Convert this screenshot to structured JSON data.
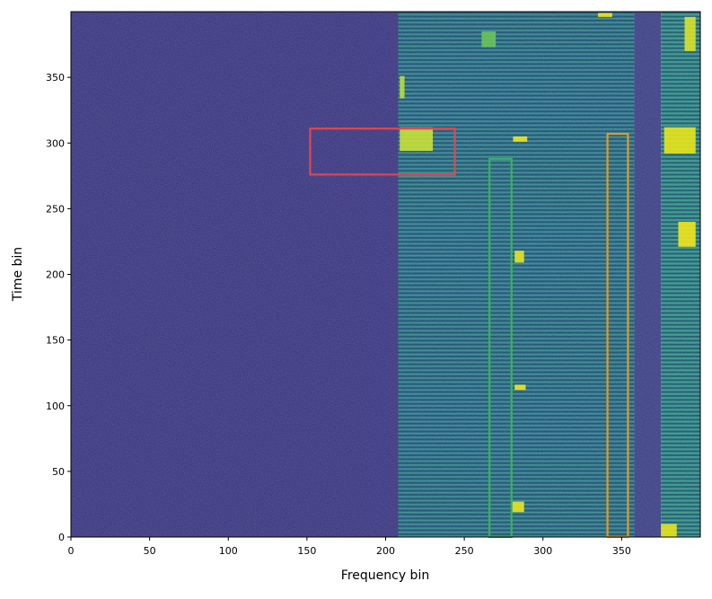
{
  "chart_data": {
    "type": "spectrogram",
    "xlabel": "Frequency bin",
    "ylabel": "Time bin",
    "xlim": [
      0,
      400
    ],
    "ylim": [
      0,
      400
    ],
    "xticks": [
      0,
      50,
      100,
      150,
      200,
      250,
      300,
      350
    ],
    "yticks": [
      0,
      50,
      100,
      150,
      200,
      250,
      300,
      350
    ],
    "bands": [
      {
        "x": [
          0,
          208
        ],
        "color": "#3a2f7c",
        "striped": false
      },
      {
        "x": [
          208,
          358
        ],
        "color": "#2a6f8e",
        "striped": true
      },
      {
        "x": [
          358,
          375
        ],
        "color": "#3b3a82",
        "striped": false
      },
      {
        "x": [
          375,
          400
        ],
        "color": "#2c8c86",
        "striped": true
      }
    ],
    "patches": [
      {
        "x": [
          209,
          230
        ],
        "y": [
          294,
          312
        ],
        "color": "#c8e03a"
      },
      {
        "x": [
          377,
          397
        ],
        "y": [
          292,
          312
        ],
        "color": "#e8e41c"
      },
      {
        "x": [
          386,
          397
        ],
        "y": [
          221,
          240
        ],
        "color": "#f2e51c"
      },
      {
        "x": [
          261,
          270
        ],
        "y": [
          373,
          385
        ],
        "color": "#6cc35a"
      },
      {
        "x": [
          280,
          288
        ],
        "y": [
          19,
          27
        ],
        "color": "#eee41e"
      },
      {
        "x": [
          282,
          288
        ],
        "y": [
          209,
          218
        ],
        "color": "#e8e41c"
      },
      {
        "x": [
          375,
          385
        ],
        "y": [
          0,
          10
        ],
        "color": "#e8e41c"
      },
      {
        "x": [
          390,
          397
        ],
        "y": [
          370,
          396
        ],
        "color": "#d8e22a"
      },
      {
        "x": [
          209,
          212
        ],
        "y": [
          334,
          351
        ],
        "color": "#b8de3a"
      },
      {
        "x": [
          281,
          290
        ],
        "y": [
          301,
          305
        ],
        "color": "#f2e51c"
      },
      {
        "x": [
          282,
          289
        ],
        "y": [
          112,
          116
        ],
        "color": "#f2e51c"
      },
      {
        "x": [
          335,
          344
        ],
        "y": [
          396,
          399
        ],
        "color": "#f2e51c"
      }
    ],
    "boxes": [
      {
        "x": [
          152,
          244
        ],
        "y": [
          276,
          311
        ],
        "color": "#e0474c"
      },
      {
        "x": [
          266,
          280
        ],
        "y": [
          0,
          288
        ],
        "color": "#3cb15a"
      },
      {
        "x": [
          341,
          354
        ],
        "y": [
          0,
          307
        ],
        "color": "#e59a1f"
      }
    ]
  }
}
